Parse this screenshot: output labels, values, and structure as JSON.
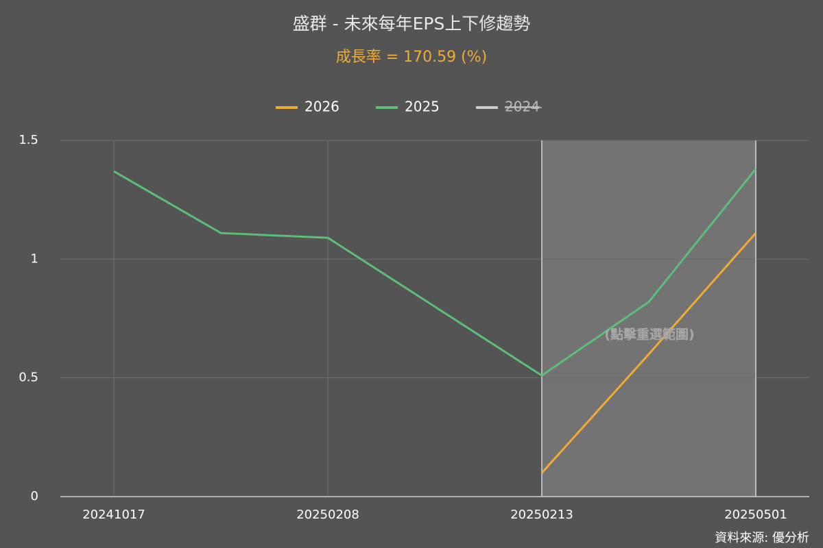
{
  "chart_data": {
    "type": "line",
    "title": "盛群 - 未來每年EPS上下修趨勢",
    "subtitle": "成長率 = 170.59 (%)",
    "categories": [
      "20241017",
      null,
      "20250208",
      null,
      "20250213",
      null,
      "20250501"
    ],
    "series": [
      {
        "name": "2026",
        "color": "#f0ab32",
        "values": [
          null,
          null,
          null,
          null,
          0.1,
          0.6,
          1.11
        ]
      },
      {
        "name": "2025",
        "color": "#5cbf78",
        "values": [
          1.37,
          1.11,
          1.09,
          0.8,
          0.51,
          0.82,
          1.38
        ]
      },
      {
        "name": "2024",
        "color": "#cccccc",
        "hidden": true,
        "values": [
          null,
          null,
          null,
          null,
          null,
          null,
          null
        ]
      }
    ],
    "ylim": [
      0,
      1.5
    ],
    "yticks": [
      0,
      0.5,
      1,
      1.5
    ],
    "grid": true,
    "selection": {
      "categories": [
        4,
        6
      ],
      "label": "(點擊重選範圍)"
    },
    "source": "資料來源: 優分析"
  }
}
